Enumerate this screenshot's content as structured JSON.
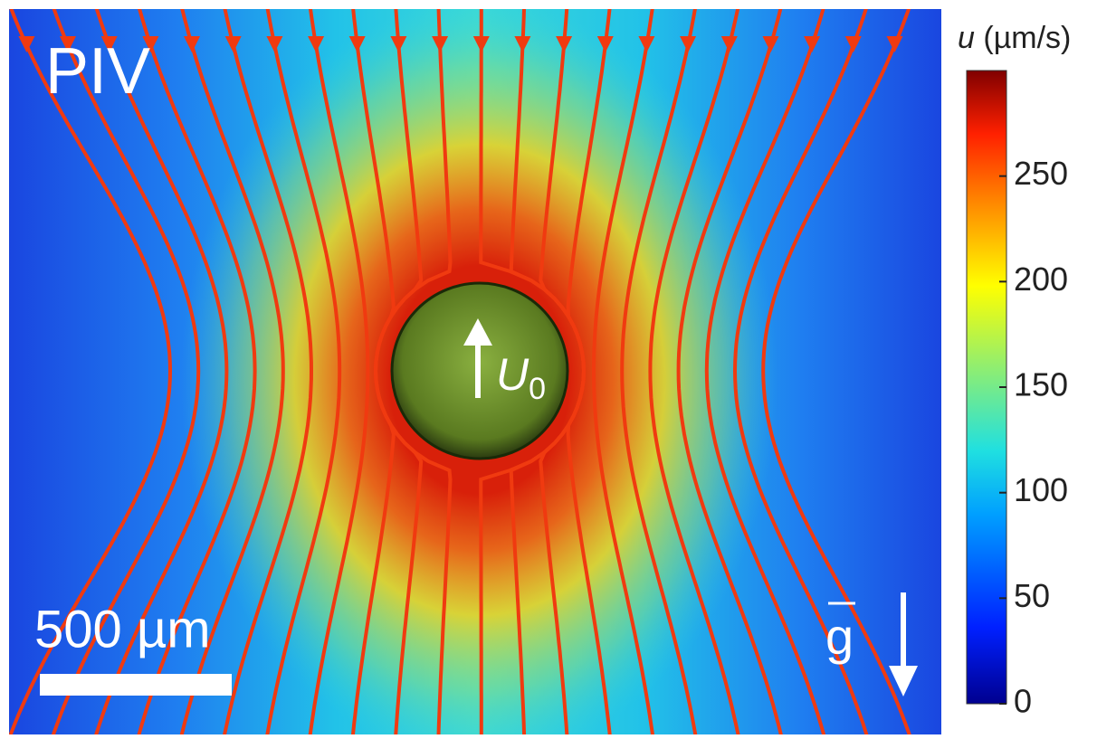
{
  "chart_data": {
    "type": "field",
    "panel_label": "PIV",
    "velocity_symbol": "U",
    "velocity_subscript": "0",
    "scale_bar_label": "500 µm",
    "gravity_label": "g",
    "colorbar": {
      "symbol": "u",
      "unit": "(µm/s)",
      "lim": [
        0,
        300
      ],
      "ticks": [
        0,
        50,
        100,
        150,
        200,
        250
      ]
    }
  }
}
